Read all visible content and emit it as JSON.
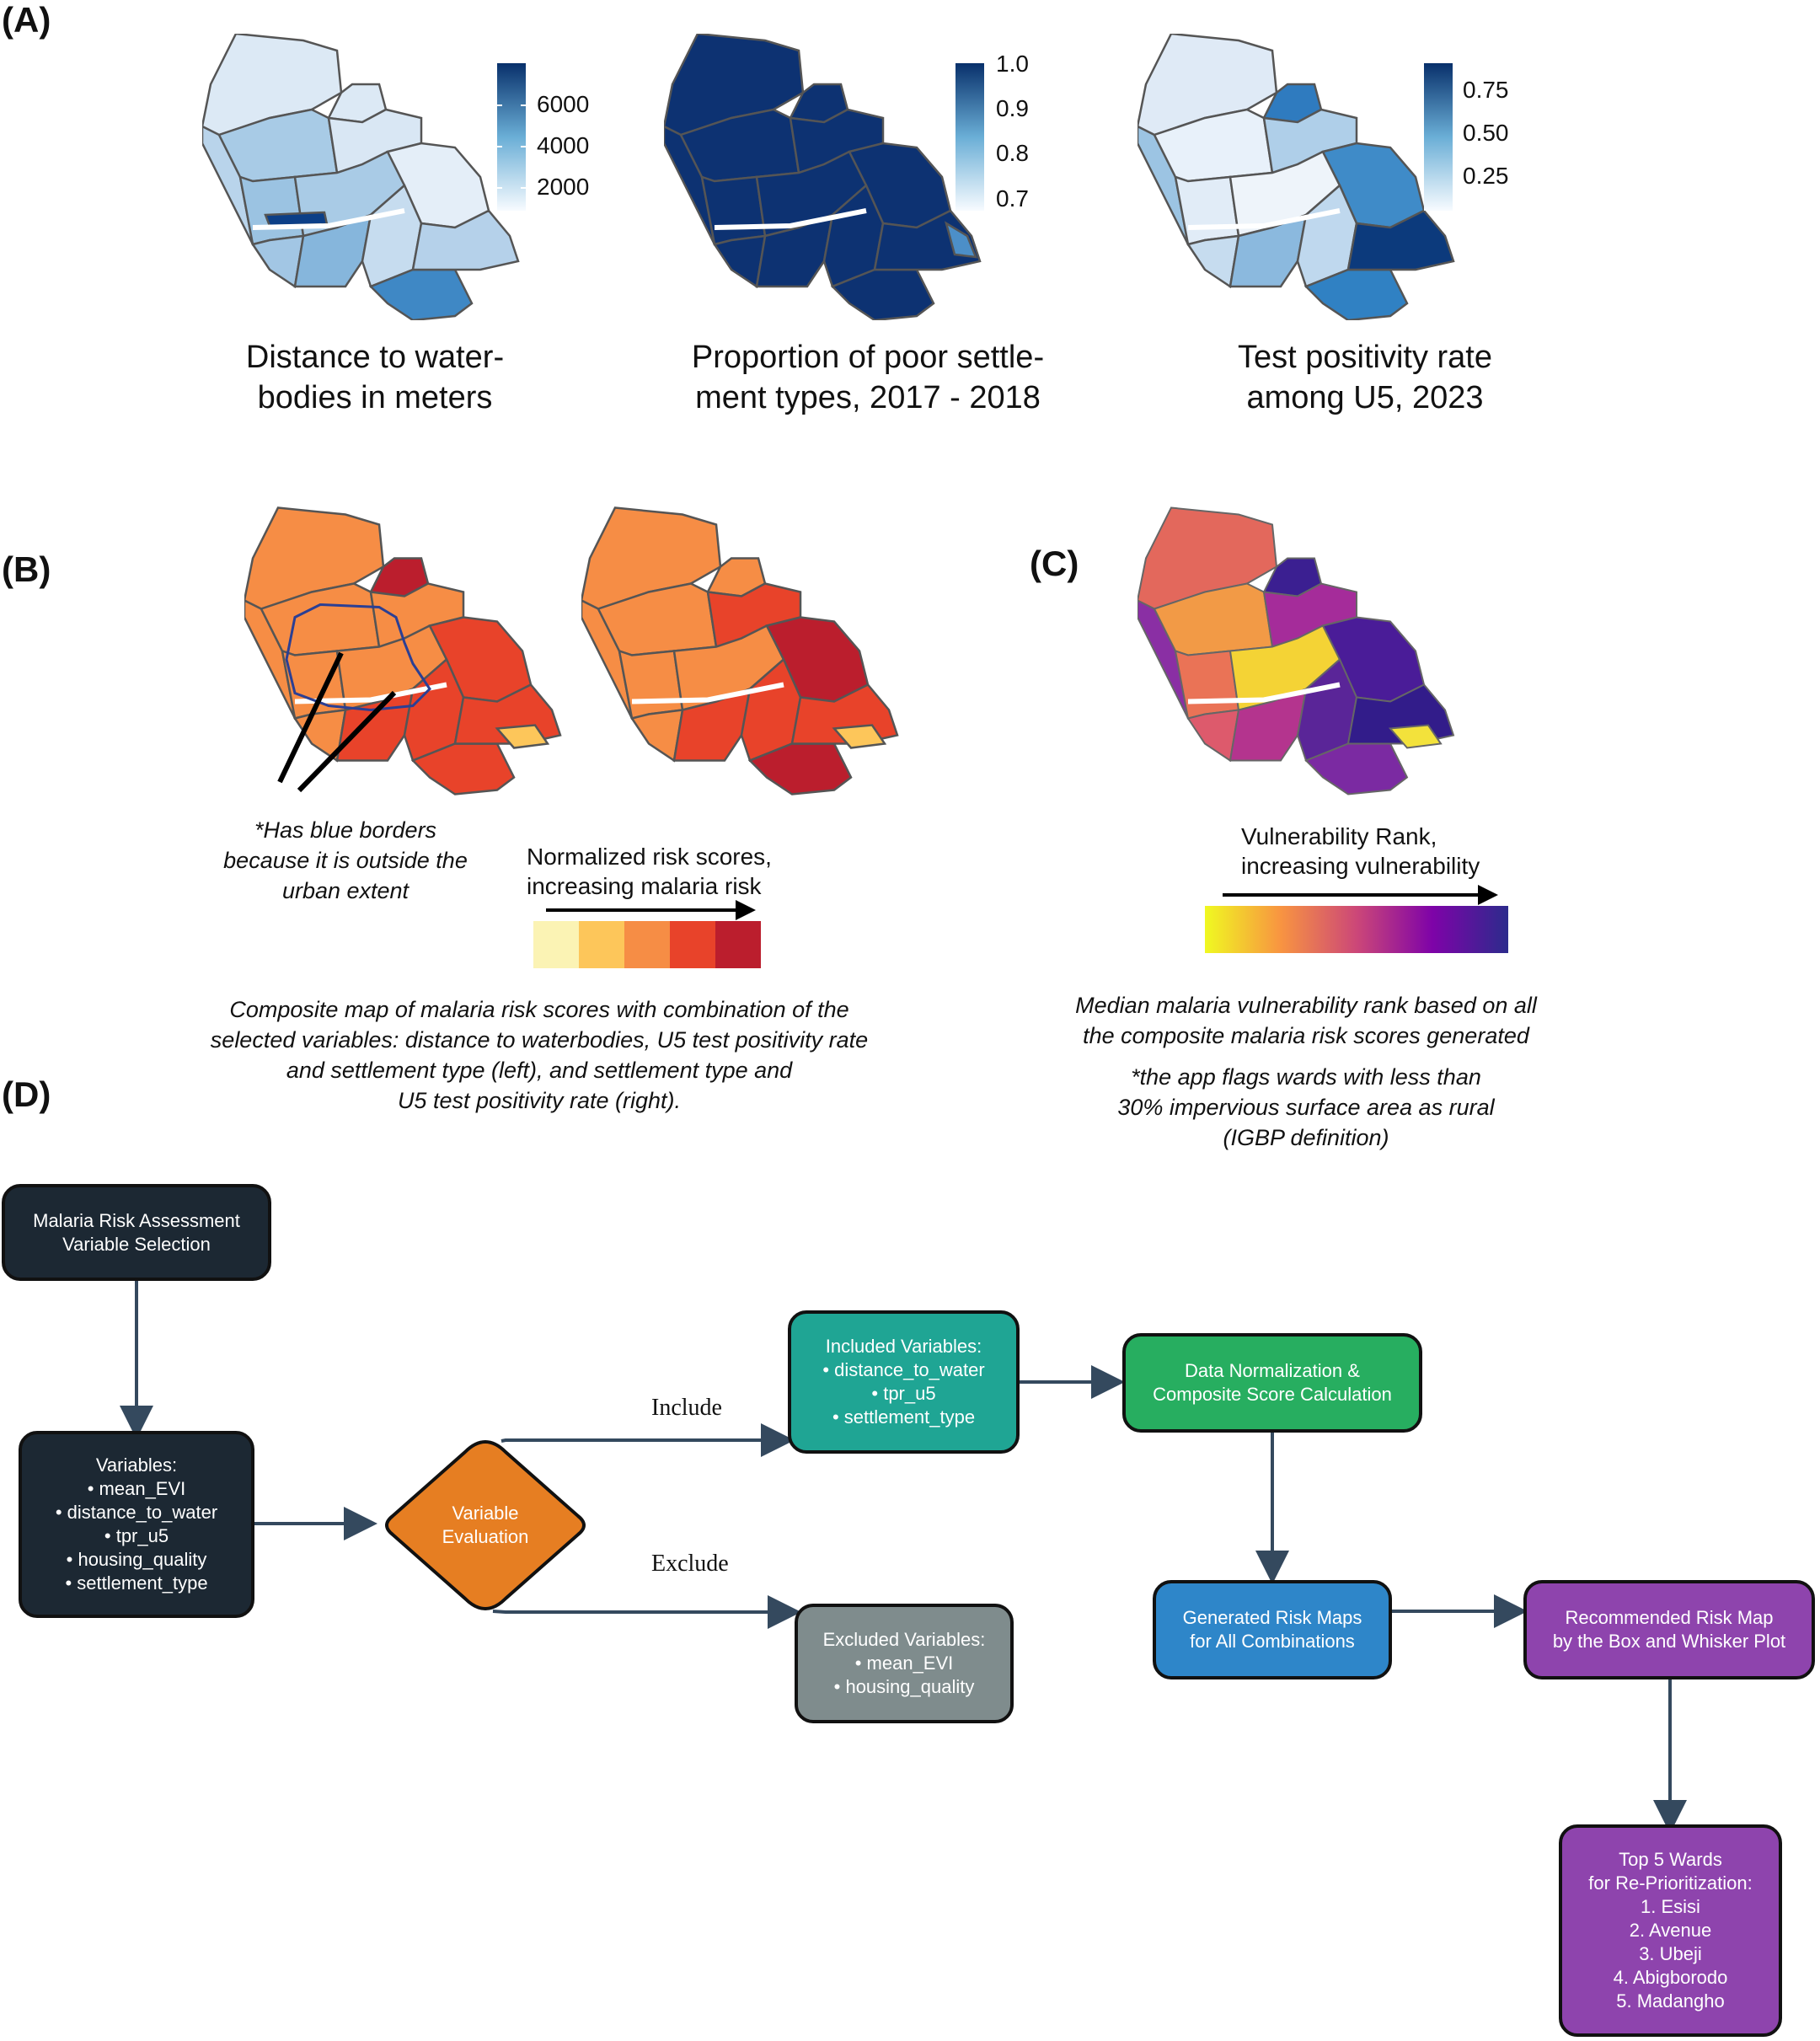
{
  "panels": {
    "A": {
      "label": "(A)",
      "maps": [
        {
          "caption": "Distance to water-\nbodies in meters",
          "legend_ticks": [
            "6000",
            "4000",
            "2000"
          ],
          "colors": {
            "low": "#f2f8fd",
            "high": "#08306b"
          }
        },
        {
          "caption": "Proportion of poor settle-\nment types, 2017 - 2018",
          "legend_ticks": [
            "1.0",
            "0.9",
            "0.8",
            "0.7"
          ],
          "colors": {
            "low": "#f2f8fd",
            "high": "#08306b"
          }
        },
        {
          "caption": "Test positivity rate\namong U5, 2023",
          "legend_ticks": [
            "0.75",
            "0.50",
            "0.25"
          ],
          "colors": {
            "low": "#f2f8fd",
            "high": "#08306b"
          }
        }
      ]
    },
    "B": {
      "label": "(B)",
      "annotation": "*Has blue borders\nbecause it is outside the\nurban extent",
      "legend_title": "Normalized risk scores,\nincreasing malaria risk",
      "legend_colors": [
        "#fbf3b4",
        "#fdc65a",
        "#f68d45",
        "#e8432a",
        "#bb1e2d"
      ],
      "caption": "Composite map of malaria risk scores with combination of the\nselected variables: distance to waterbodies, U5 test positivity rate\nand settlement type (left), and settlement type and\nU5 test positivity rate (right)."
    },
    "C": {
      "label": "(C)",
      "legend_title": "Vulnerability Rank,\nincreasing vulnerability",
      "gradient_colors": [
        "#f0f921",
        "#f89441",
        "#cc4778",
        "#7e03a8",
        "#2c2b8c"
      ],
      "caption": "Median malaria vulnerability rank based on all\nthe composite malaria risk scores generated",
      "note": "*the app flags wards with less than\n30% impervious surface area as rural\n(IGBP definition)"
    },
    "D": {
      "label": "(D)",
      "nodes": {
        "start": "Malaria Risk Assessment\nVariable Selection",
        "variables": "Variables:\n• mean_EVI\n• distance_to_water\n• tpr_u5\n• housing_quality\n• settlement_type",
        "evaluation": "Variable\nEvaluation",
        "included": "Included Variables:\n• distance_to_water\n• tpr_u5\n• settlement_type",
        "excluded": "Excluded Variables:\n• mean_EVI\n• housing_quality",
        "normalization": "Data Normalization &\nComposite Score Calculation",
        "risk_maps": "Generated Risk Maps\nfor All Combinations",
        "recommended": "Recommended Risk Map\nby the Box and Whisker Plot",
        "top5": "Top 5 Wards\nfor Re-Prioritization:\n1. Esisi\n2. Avenue\n3. Ubeji\n4. Abigborodo\n5. Madangho"
      },
      "edge_labels": {
        "include": "Include",
        "exclude": "Exclude"
      },
      "node_colors": {
        "dark": "#1c2833",
        "evaluation": "#e67e22",
        "included": "#1fa594",
        "excluded": "#7f8c8d",
        "normalization": "#27ae60",
        "risk_maps": "#2e86c9",
        "recommended": "#8e44ad",
        "top5": "#8e44ad",
        "edge": "#34495e"
      }
    }
  }
}
